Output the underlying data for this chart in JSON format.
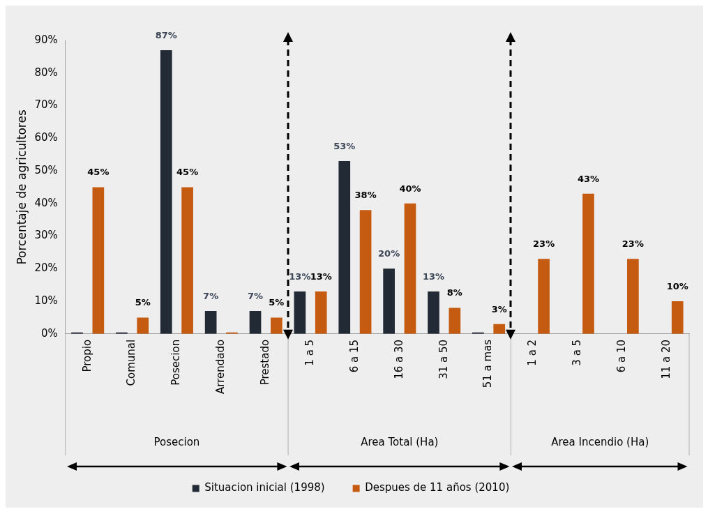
{
  "chart_data": {
    "type": "bar",
    "ylabel": "Porcentaje de agricultores",
    "categories": [
      "Propio",
      "Comunal",
      "Posecion",
      "Arrendado",
      "Prestado",
      "1 a 5",
      "6 a 15",
      "16 a 30",
      "31 a 50",
      "51 a mas",
      "1 a 2",
      "3 a 5",
      "6 a 10",
      "11 a 20"
    ],
    "series": [
      {
        "name": "Situacion inicial (1998)",
        "color": "#222a35",
        "values": [
          0,
          0,
          87,
          7,
          7,
          13,
          53,
          20,
          13,
          0,
          null,
          null,
          null,
          null
        ],
        "value_labels": [
          null,
          null,
          "87%",
          "7%",
          "7%",
          "13%",
          "53%",
          "20%",
          "13%",
          null,
          null,
          null,
          null,
          null
        ]
      },
      {
        "name": "Despues de 11 años (2010)",
        "color": "#c55a11",
        "values": [
          45,
          5,
          45,
          0,
          5,
          13,
          38,
          40,
          8,
          3,
          23,
          43,
          23,
          10
        ],
        "value_labels": [
          "45%",
          "5%",
          "45%",
          null,
          "5%",
          "13%",
          "38%",
          "40%",
          "8%",
          "3%",
          "23%",
          "43%",
          "23%",
          "10%"
        ]
      }
    ],
    "ylim": [
      0,
      90
    ],
    "yticks": [
      {
        "value": 0,
        "label": "0%"
      },
      {
        "value": 10,
        "label": "10%"
      },
      {
        "value": 20,
        "label": "20%"
      },
      {
        "value": 30,
        "label": "30%"
      },
      {
        "value": 40,
        "label": "40%"
      },
      {
        "value": 50,
        "label": "50%"
      },
      {
        "value": 60,
        "label": "60%"
      },
      {
        "value": 70,
        "label": "70%"
      },
      {
        "value": 80,
        "label": "80%"
      },
      {
        "value": 90,
        "label": "90%"
      }
    ],
    "annotations": [
      "Posecion",
      "Area Total (Ha)",
      "Area Incendio (Ha)"
    ],
    "grid": false,
    "legend": "bottom"
  }
}
